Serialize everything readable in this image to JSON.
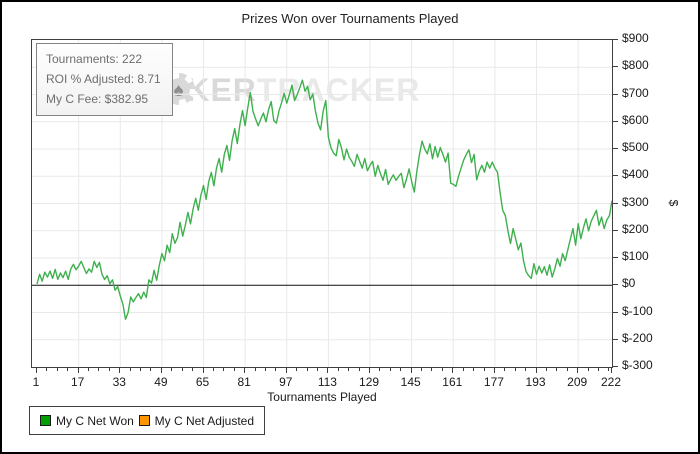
{
  "title": "Prizes Won over Tournaments Played",
  "info_box": {
    "lines": [
      "Tournaments: 222",
      "ROI % Adjusted: 8.71",
      "My C Fee: $382.95"
    ]
  },
  "watermark": {
    "p1": "P",
    "p2": "KER",
    "p3": "TRACKER",
    "chip_symbol": "♠"
  },
  "legend": {
    "items": [
      {
        "label": "My C Net Won",
        "color": "#00a005"
      },
      {
        "label": "My C Net Adjusted",
        "color": "#ff9500"
      }
    ]
  },
  "chart_data": {
    "type": "line",
    "title": "Prizes Won over Tournaments Played",
    "xlabel": "Tournaments Played",
    "ylabel": "$",
    "xlim": [
      1,
      222
    ],
    "ylim": [
      -300,
      900
    ],
    "grid": true,
    "legend_position": "bottom-left",
    "x_ticks": [
      1,
      17,
      33,
      49,
      65,
      81,
      97,
      113,
      129,
      145,
      161,
      177,
      193,
      209,
      222
    ],
    "y_ticks": [
      {
        "value": 900,
        "label": "$900"
      },
      {
        "value": 800,
        "label": "$800"
      },
      {
        "value": 700,
        "label": "$700"
      },
      {
        "value": 600,
        "label": "$600"
      },
      {
        "value": 500,
        "label": "$500"
      },
      {
        "value": 400,
        "label": "$400"
      },
      {
        "value": 300,
        "label": "$300"
      },
      {
        "value": 200,
        "label": "$200"
      },
      {
        "value": 100,
        "label": "$100"
      },
      {
        "value": 0,
        "label": "$0"
      },
      {
        "value": -100,
        "label": "$-100"
      },
      {
        "value": -200,
        "label": "$-200"
      },
      {
        "value": -300,
        "label": "$-300"
      }
    ],
    "zero_line_value": 0,
    "colors": {
      "grid": "#e9e9e9",
      "zero_line": "#111111",
      "axis": "#3f3f3f"
    },
    "series": [
      {
        "name": "My C Net Won",
        "color": "#3eb04e",
        "points": [
          [
            1,
            5
          ],
          [
            2,
            40
          ],
          [
            3,
            15
          ],
          [
            4,
            48
          ],
          [
            5,
            30
          ],
          [
            6,
            52
          ],
          [
            7,
            25
          ],
          [
            8,
            58
          ],
          [
            9,
            22
          ],
          [
            10,
            45
          ],
          [
            11,
            28
          ],
          [
            12,
            52
          ],
          [
            13,
            22
          ],
          [
            14,
            60
          ],
          [
            15,
            77
          ],
          [
            16,
            57
          ],
          [
            17,
            70
          ],
          [
            18,
            88
          ],
          [
            19,
            65
          ],
          [
            20,
            43
          ],
          [
            21,
            60
          ],
          [
            22,
            48
          ],
          [
            23,
            88
          ],
          [
            24,
            65
          ],
          [
            25,
            84
          ],
          [
            26,
            40
          ],
          [
            27,
            21
          ],
          [
            28,
            35
          ],
          [
            29,
            5
          ],
          [
            30,
            20
          ],
          [
            31,
            -18
          ],
          [
            32,
            -5
          ],
          [
            33,
            -40
          ],
          [
            34,
            -70
          ],
          [
            35,
            -125
          ],
          [
            36,
            -100
          ],
          [
            37,
            -43
          ],
          [
            38,
            -61
          ],
          [
            39,
            -45
          ],
          [
            40,
            -31
          ],
          [
            41,
            -50
          ],
          [
            42,
            -25
          ],
          [
            43,
            -45
          ],
          [
            44,
            20
          ],
          [
            45,
            8
          ],
          [
            46,
            55
          ],
          [
            47,
            18
          ],
          [
            48,
            73
          ],
          [
            49,
            116
          ],
          [
            50,
            90
          ],
          [
            51,
            147
          ],
          [
            52,
            120
          ],
          [
            53,
            189
          ],
          [
            54,
            154
          ],
          [
            55,
            175
          ],
          [
            56,
            231
          ],
          [
            57,
            180
          ],
          [
            58,
            220
          ],
          [
            59,
            267
          ],
          [
            60,
            225
          ],
          [
            61,
            280
          ],
          [
            62,
            319
          ],
          [
            63,
            275
          ],
          [
            64,
            330
          ],
          [
            65,
            366
          ],
          [
            66,
            315
          ],
          [
            67,
            380
          ],
          [
            68,
            414
          ],
          [
            69,
            365
          ],
          [
            70,
            430
          ],
          [
            71,
            465
          ],
          [
            72,
            415
          ],
          [
            73,
            480
          ],
          [
            74,
            513
          ],
          [
            75,
            458
          ],
          [
            76,
            530
          ],
          [
            77,
            575
          ],
          [
            78,
            520
          ],
          [
            79,
            590
          ],
          [
            80,
            641
          ],
          [
            81,
            586
          ],
          [
            82,
            650
          ],
          [
            83,
            707
          ],
          [
            84,
            638
          ],
          [
            85,
            610
          ],
          [
            86,
            585
          ],
          [
            87,
            610
          ],
          [
            88,
            632
          ],
          [
            89,
            600
          ],
          [
            90,
            645
          ],
          [
            91,
            674
          ],
          [
            92,
            604
          ],
          [
            93,
            595
          ],
          [
            94,
            640
          ],
          [
            95,
            670
          ],
          [
            96,
            704
          ],
          [
            97,
            668
          ],
          [
            98,
            700
          ],
          [
            99,
            735
          ],
          [
            100,
            678
          ],
          [
            101,
            700
          ],
          [
            102,
            725
          ],
          [
            103,
            753
          ],
          [
            104,
            712
          ],
          [
            105,
            730
          ],
          [
            106,
            680
          ],
          [
            107,
            702
          ],
          [
            108,
            640
          ],
          [
            109,
            595
          ],
          [
            110,
            570
          ],
          [
            111,
            640
          ],
          [
            112,
            678
          ],
          [
            113,
            543
          ],
          [
            114,
            504
          ],
          [
            115,
            485
          ],
          [
            116,
            475
          ],
          [
            117,
            535
          ],
          [
            118,
            505
          ],
          [
            119,
            460
          ],
          [
            120,
            500
          ],
          [
            121,
            470
          ],
          [
            122,
            455
          ],
          [
            123,
            436
          ],
          [
            124,
            480
          ],
          [
            125,
            455
          ],
          [
            126,
            430
          ],
          [
            127,
            465
          ],
          [
            128,
            420
          ],
          [
            129,
            440
          ],
          [
            130,
            455
          ],
          [
            131,
            400
          ],
          [
            132,
            440
          ],
          [
            133,
            410
          ],
          [
            134,
            385
          ],
          [
            135,
            425
          ],
          [
            136,
            370
          ],
          [
            137,
            390
          ],
          [
            138,
            405
          ],
          [
            139,
            385
          ],
          [
            140,
            400
          ],
          [
            141,
            411
          ],
          [
            142,
            358
          ],
          [
            143,
            390
          ],
          [
            144,
            427
          ],
          [
            145,
            380
          ],
          [
            146,
            342
          ],
          [
            147,
            420
          ],
          [
            148,
            480
          ],
          [
            149,
            529
          ],
          [
            150,
            500
          ],
          [
            151,
            482
          ],
          [
            152,
            519
          ],
          [
            153,
            464
          ],
          [
            154,
            509
          ],
          [
            155,
            470
          ],
          [
            156,
            505
          ],
          [
            157,
            480
          ],
          [
            158,
            452
          ],
          [
            159,
            485
          ],
          [
            160,
            375
          ],
          [
            161,
            370
          ],
          [
            162,
            363
          ],
          [
            163,
            400
          ],
          [
            164,
            430
          ],
          [
            165,
            460
          ],
          [
            166,
            480
          ],
          [
            167,
            497
          ],
          [
            168,
            450
          ],
          [
            169,
            480
          ],
          [
            170,
            387
          ],
          [
            171,
            420
          ],
          [
            172,
            440
          ],
          [
            173,
            415
          ],
          [
            174,
            452
          ],
          [
            175,
            430
          ],
          [
            176,
            452
          ],
          [
            177,
            430
          ],
          [
            178,
            415
          ],
          [
            179,
            340
          ],
          [
            180,
            275
          ],
          [
            181,
            256
          ],
          [
            182,
            200
          ],
          [
            183,
            153
          ],
          [
            184,
            208
          ],
          [
            185,
            170
          ],
          [
            186,
            130
          ],
          [
            187,
            155
          ],
          [
            188,
            90
          ],
          [
            189,
            50
          ],
          [
            190,
            35
          ],
          [
            191,
            25
          ],
          [
            192,
            79
          ],
          [
            193,
            40
          ],
          [
            194,
            70
          ],
          [
            195,
            45
          ],
          [
            196,
            68
          ],
          [
            197,
            37
          ],
          [
            198,
            75
          ],
          [
            199,
            30
          ],
          [
            200,
            60
          ],
          [
            201,
            98
          ],
          [
            202,
            70
          ],
          [
            203,
            116
          ],
          [
            204,
            90
          ],
          [
            205,
            130
          ],
          [
            206,
            170
          ],
          [
            207,
            208
          ],
          [
            208,
            147
          ],
          [
            209,
            226
          ],
          [
            210,
            171
          ],
          [
            211,
            210
          ],
          [
            212,
            244
          ],
          [
            213,
            200
          ],
          [
            214,
            235
          ],
          [
            215,
            255
          ],
          [
            216,
            275
          ],
          [
            217,
            220
          ],
          [
            218,
            250
          ],
          [
            219,
            208
          ],
          [
            220,
            240
          ],
          [
            221,
            255
          ],
          [
            222,
            310
          ]
        ]
      },
      {
        "name": "My C Net Adjusted",
        "color": "#ff9500",
        "points": []
      }
    ]
  }
}
